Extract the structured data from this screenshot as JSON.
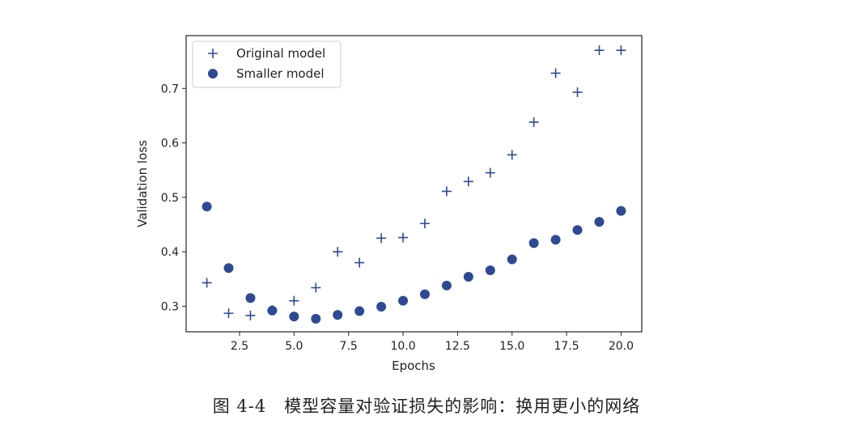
{
  "caption": "图 4-4　模型容量对验证损失的影响：换用更小的网络",
  "colors": {
    "marker": "#2E4A93",
    "axis": "#222222"
  },
  "chart_data": {
    "type": "scatter",
    "title": "",
    "xlabel": "Epochs",
    "ylabel": "Validation loss",
    "xlim": [
      0.05,
      20.95
    ],
    "ylim": [
      0.253,
      0.797
    ],
    "xticks": [
      2.5,
      5.0,
      7.5,
      10.0,
      12.5,
      15.0,
      17.5,
      20.0
    ],
    "xtick_labels": [
      "2.5",
      "5.0",
      "7.5",
      "10.0",
      "12.5",
      "15.0",
      "17.5",
      "20.0"
    ],
    "yticks": [
      0.3,
      0.4,
      0.5,
      0.6,
      0.7
    ],
    "ytick_labels": [
      "0.3",
      "0.4",
      "0.5",
      "0.6",
      "0.7"
    ],
    "grid": false,
    "legend_position": "top-left",
    "series": [
      {
        "name": "Original model",
        "marker": "plus",
        "x": [
          1,
          2,
          3,
          4,
          5,
          6,
          7,
          8,
          9,
          10,
          11,
          12,
          13,
          14,
          15,
          16,
          17,
          18,
          19,
          20
        ],
        "y": [
          0.343,
          0.287,
          0.283,
          0.293,
          0.31,
          0.334,
          0.4,
          0.38,
          0.425,
          0.426,
          0.452,
          0.511,
          0.529,
          0.545,
          0.578,
          0.638,
          0.728,
          0.693,
          0.77,
          0.77
        ]
      },
      {
        "name": "Smaller model",
        "marker": "circle",
        "x": [
          1,
          2,
          3,
          4,
          5,
          6,
          7,
          8,
          9,
          10,
          11,
          12,
          13,
          14,
          15,
          16,
          17,
          18,
          19,
          20
        ],
        "y": [
          0.483,
          0.37,
          0.315,
          0.292,
          0.281,
          0.277,
          0.284,
          0.291,
          0.299,
          0.31,
          0.322,
          0.338,
          0.354,
          0.366,
          0.386,
          0.416,
          0.422,
          0.44,
          0.455,
          0.475
        ]
      }
    ]
  }
}
